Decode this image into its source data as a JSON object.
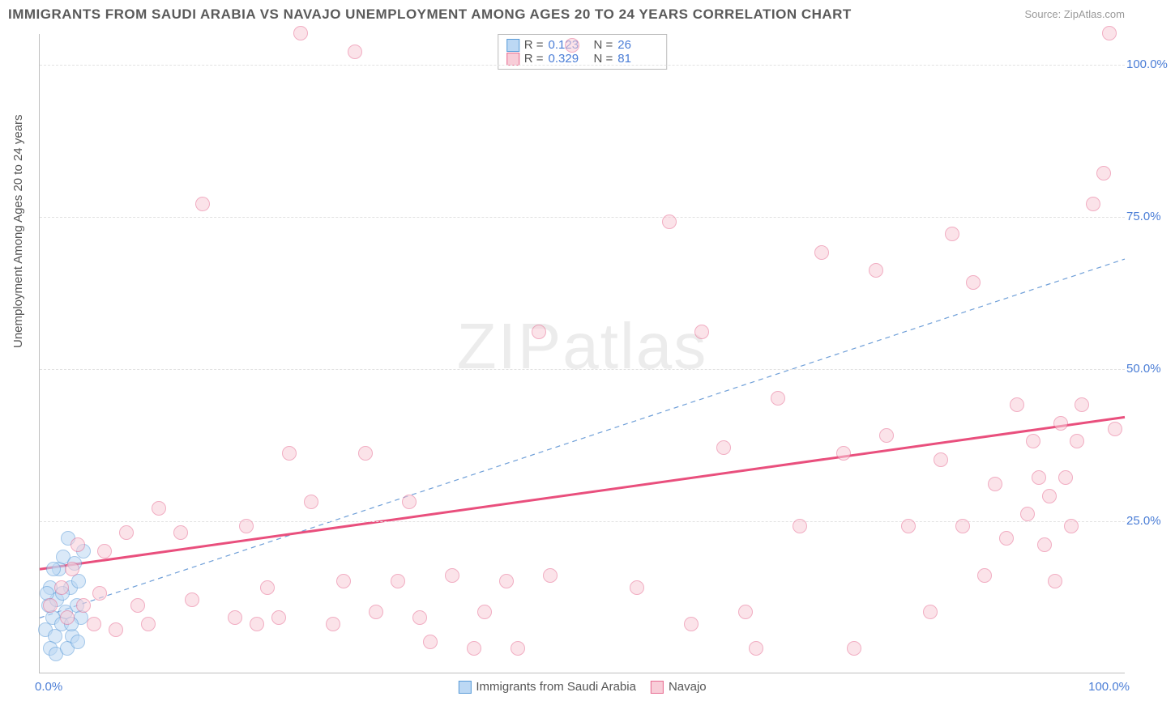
{
  "title": "IMMIGRANTS FROM SAUDI ARABIA VS NAVAJO UNEMPLOYMENT AMONG AGES 20 TO 24 YEARS CORRELATION CHART",
  "source_prefix": "Source: ",
  "source_name": "ZipAtlas.com",
  "ylabel": "Unemployment Among Ages 20 to 24 years",
  "watermark_bold": "ZIP",
  "watermark_thin": "atlas",
  "chart": {
    "type": "scatter",
    "xlim": [
      0,
      100
    ],
    "ylim": [
      0,
      105
    ],
    "ytick_step": 25,
    "yticks": [
      25,
      50,
      75,
      100
    ],
    "ytick_labels": [
      "25.0%",
      "50.0%",
      "75.0%",
      "100.0%"
    ],
    "xtick_left": "0.0%",
    "xtick_right": "100.0%",
    "background_color": "#ffffff",
    "grid_color": "#e2e2e2",
    "axis_color": "#bfbfbf",
    "marker_radius": 9,
    "marker_opacity": 0.55,
    "series": [
      {
        "name": "Immigrants from Saudi Arabia",
        "fill": "#bcd8f4",
        "stroke": "#5a9bd8",
        "R": "0.123",
        "N": "26",
        "trend": {
          "x1": 0,
          "y1": 9,
          "x2": 100,
          "y2": 68,
          "stroke": "#6f9fd8",
          "width": 1.2,
          "dash": "6,5"
        },
        "points": [
          [
            0.5,
            7
          ],
          [
            0.8,
            11
          ],
          [
            1.0,
            14
          ],
          [
            1.2,
            9
          ],
          [
            1.4,
            6
          ],
          [
            1.6,
            12
          ],
          [
            1.8,
            17
          ],
          [
            2.0,
            8
          ],
          [
            2.2,
            19
          ],
          [
            2.4,
            10
          ],
          [
            2.6,
            22
          ],
          [
            2.8,
            14
          ],
          [
            3.0,
            6
          ],
          [
            3.2,
            18
          ],
          [
            3.4,
            11
          ],
          [
            3.6,
            15
          ],
          [
            3.8,
            9
          ],
          [
            4.0,
            20
          ],
          [
            1.0,
            4
          ],
          [
            1.5,
            3
          ],
          [
            2.5,
            4
          ],
          [
            0.7,
            13
          ],
          [
            1.3,
            17
          ],
          [
            2.1,
            13
          ],
          [
            2.9,
            8
          ],
          [
            3.5,
            5
          ]
        ]
      },
      {
        "name": "Navajo",
        "fill": "#f8cdd8",
        "stroke": "#e76b91",
        "R": "0.329",
        "N": "81",
        "trend": {
          "x1": 0,
          "y1": 17,
          "x2": 100,
          "y2": 42,
          "stroke": "#e94f7d",
          "width": 3,
          "dash": null
        },
        "points": [
          [
            1,
            11
          ],
          [
            2,
            14
          ],
          [
            2.5,
            9
          ],
          [
            3,
            17
          ],
          [
            3.5,
            21
          ],
          [
            4,
            11
          ],
          [
            5,
            8
          ],
          [
            5.5,
            13
          ],
          [
            6,
            20
          ],
          [
            7,
            7
          ],
          [
            8,
            23
          ],
          [
            9,
            11
          ],
          [
            10,
            8
          ],
          [
            11,
            27
          ],
          [
            13,
            23
          ],
          [
            14,
            12
          ],
          [
            15,
            77
          ],
          [
            18,
            9
          ],
          [
            19,
            24
          ],
          [
            20,
            8
          ],
          [
            21,
            14
          ],
          [
            22,
            9
          ],
          [
            23,
            36
          ],
          [
            24,
            105
          ],
          [
            25,
            28
          ],
          [
            27,
            8
          ],
          [
            28,
            15
          ],
          [
            29,
            102
          ],
          [
            30,
            36
          ],
          [
            31,
            10
          ],
          [
            33,
            15
          ],
          [
            34,
            28
          ],
          [
            35,
            9
          ],
          [
            36,
            5
          ],
          [
            38,
            16
          ],
          [
            40,
            4
          ],
          [
            41,
            10
          ],
          [
            43,
            15
          ],
          [
            44,
            4
          ],
          [
            46,
            56
          ],
          [
            47,
            16
          ],
          [
            49,
            103
          ],
          [
            55,
            14
          ],
          [
            58,
            74
          ],
          [
            60,
            8
          ],
          [
            61,
            56
          ],
          [
            63,
            37
          ],
          [
            65,
            10
          ],
          [
            66,
            4
          ],
          [
            68,
            45
          ],
          [
            70,
            24
          ],
          [
            72,
            69
          ],
          [
            74,
            36
          ],
          [
            75,
            4
          ],
          [
            77,
            66
          ],
          [
            78,
            39
          ],
          [
            80,
            24
          ],
          [
            82,
            10
          ],
          [
            83,
            35
          ],
          [
            84,
            72
          ],
          [
            85,
            24
          ],
          [
            86,
            64
          ],
          [
            87,
            16
          ],
          [
            88,
            31
          ],
          [
            89,
            22
          ],
          [
            90,
            44
          ],
          [
            91,
            26
          ],
          [
            91.5,
            38
          ],
          [
            92,
            32
          ],
          [
            92.5,
            21
          ],
          [
            93,
            29
          ],
          [
            93.5,
            15
          ],
          [
            94,
            41
          ],
          [
            94.5,
            32
          ],
          [
            95,
            24
          ],
          [
            95.5,
            38
          ],
          [
            96,
            44
          ],
          [
            97,
            77
          ],
          [
            98,
            82
          ],
          [
            98.5,
            105
          ],
          [
            99,
            40
          ]
        ]
      }
    ]
  },
  "legend_labels": {
    "R": "R =",
    "N": "N ="
  }
}
